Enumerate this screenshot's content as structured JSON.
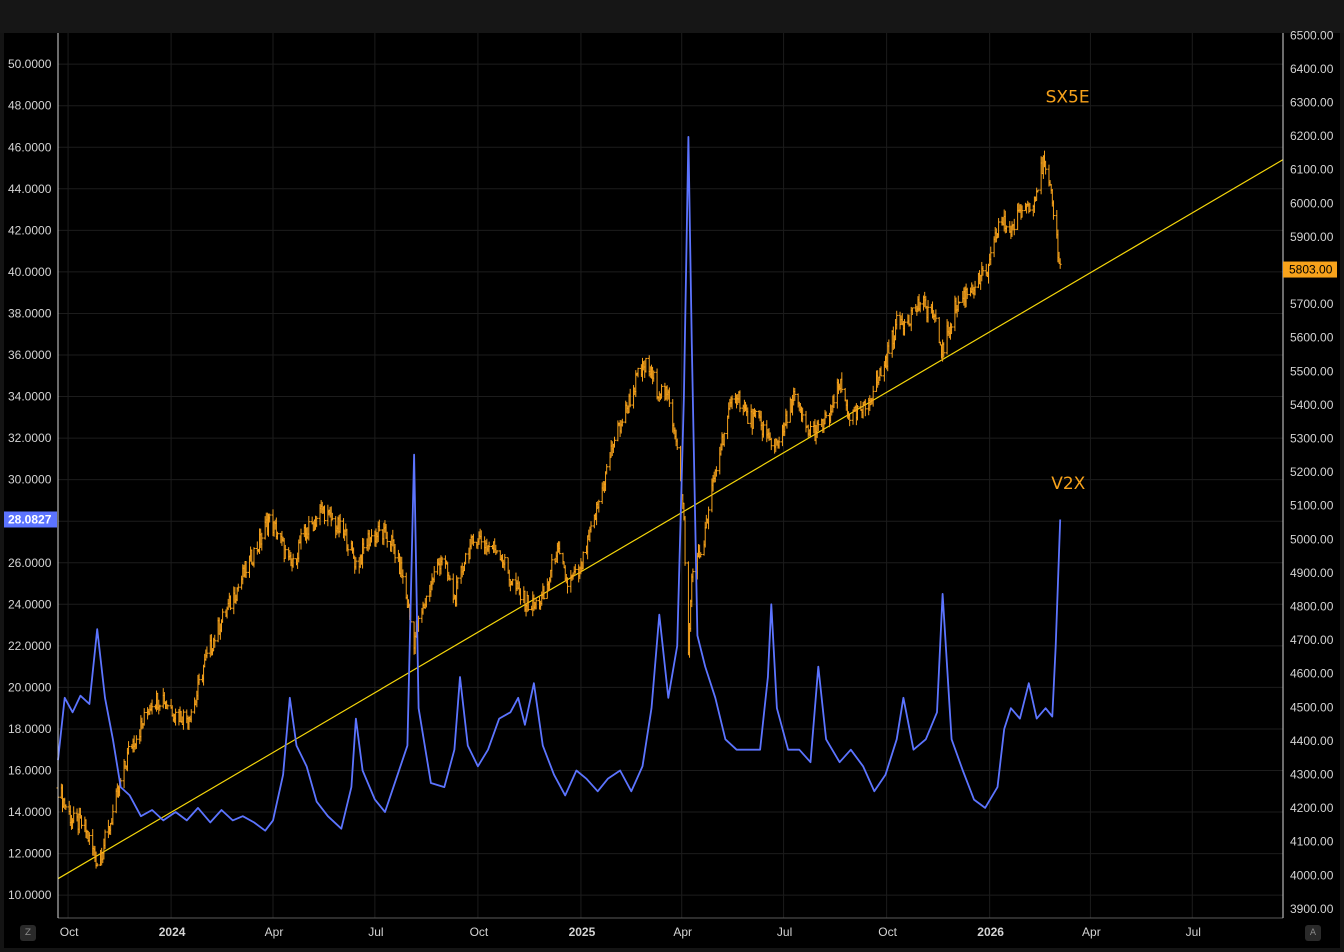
{
  "chart_data": {
    "type": "line",
    "left_axis": {
      "ticks": [
        "10.0000",
        "12.0000",
        "14.0000",
        "16.0000",
        "18.0000",
        "20.0000",
        "22.0000",
        "24.0000",
        "26.0000",
        "28.0000",
        "30.0000",
        "32.0000",
        "34.0000",
        "36.0000",
        "38.0000",
        "40.0000",
        "42.0000",
        "44.0000",
        "46.0000",
        "48.0000",
        "50.0000"
      ],
      "range": [
        8.9,
        51.5
      ],
      "last_value_label": "28.0827"
    },
    "right_axis": {
      "ticks": [
        "3900.00",
        "4000.00",
        "4100.00",
        "4200.00",
        "4300.00",
        "4400.00",
        "4500.00",
        "4600.00",
        "4700.00",
        "4800.00",
        "4900.00",
        "5000.00",
        "5100.00",
        "5200.00",
        "5300.00",
        "5400.00",
        "5500.00",
        "5600.00",
        "5700.00",
        "5800.00",
        "5900.00",
        "6000.00",
        "6100.00",
        "6200.00",
        "6300.00",
        "6400.00",
        "6500.00"
      ],
      "range": [
        3873,
        6507
      ],
      "last_value_label": "5803.00"
    },
    "x_axis": {
      "ticks": [
        {
          "label": "Oct",
          "date": "2023-10-01"
        },
        {
          "label": "2024",
          "date": "2024-01-01"
        },
        {
          "label": "Apr",
          "date": "2024-04-01"
        },
        {
          "label": "Jul",
          "date": "2024-07-01"
        },
        {
          "label": "Oct",
          "date": "2024-10-01"
        },
        {
          "label": "2025",
          "date": "2025-01-01"
        },
        {
          "label": "Apr",
          "date": "2025-04-01"
        },
        {
          "label": "Jul",
          "date": "2025-07-01"
        },
        {
          "label": "Oct",
          "date": "2025-10-01"
        },
        {
          "label": "2026",
          "date": "2026-01-01"
        },
        {
          "label": "Apr",
          "date": "2026-04-01"
        },
        {
          "label": "Jul",
          "date": "2026-07-01"
        }
      ],
      "range": [
        "2023-09-22",
        "2026-09-20"
      ]
    },
    "grid": true,
    "series": [
      {
        "name": "SX5E",
        "axis": "right",
        "style": "bars",
        "color": "#f7a21b",
        "points": [
          [
            "2023-09-22",
            4260
          ],
          [
            "2023-10-05",
            4160
          ],
          [
            "2023-10-15",
            4150
          ],
          [
            "2023-10-27",
            4040
          ],
          [
            "2023-11-05",
            4120
          ],
          [
            "2023-11-15",
            4250
          ],
          [
            "2023-11-25",
            4380
          ],
          [
            "2023-12-05",
            4440
          ],
          [
            "2023-12-15",
            4520
          ],
          [
            "2023-12-25",
            4530
          ],
          [
            "2024-01-05",
            4480
          ],
          [
            "2024-01-15",
            4470
          ],
          [
            "2024-01-22",
            4510
          ],
          [
            "2024-01-30",
            4620
          ],
          [
            "2024-02-10",
            4720
          ],
          [
            "2024-02-20",
            4790
          ],
          [
            "2024-03-01",
            4860
          ],
          [
            "2024-03-10",
            4930
          ],
          [
            "2024-03-20",
            4990
          ],
          [
            "2024-03-28",
            5060
          ],
          [
            "2024-04-05",
            5020
          ],
          [
            "2024-04-15",
            4930
          ],
          [
            "2024-04-19",
            4920
          ],
          [
            "2024-04-25",
            4990
          ],
          [
            "2024-05-05",
            5040
          ],
          [
            "2024-05-15",
            5090
          ],
          [
            "2024-05-25",
            5050
          ],
          [
            "2024-06-05",
            5010
          ],
          [
            "2024-06-15",
            4920
          ],
          [
            "2024-06-25",
            5000
          ],
          [
            "2024-07-05",
            5020
          ],
          [
            "2024-07-15",
            5000
          ],
          [
            "2024-07-25",
            4900
          ],
          [
            "2024-08-05",
            4700
          ],
          [
            "2024-08-12",
            4780
          ],
          [
            "2024-08-20",
            4870
          ],
          [
            "2024-08-30",
            4950
          ],
          [
            "2024-09-10",
            4820
          ],
          [
            "2024-09-20",
            4950
          ],
          [
            "2024-09-30",
            5010
          ],
          [
            "2024-10-10",
            4980
          ],
          [
            "2024-10-20",
            4970
          ],
          [
            "2024-10-30",
            4880
          ],
          [
            "2024-11-10",
            4820
          ],
          [
            "2024-11-20",
            4800
          ],
          [
            "2024-11-30",
            4830
          ],
          [
            "2024-12-10",
            4970
          ],
          [
            "2024-12-20",
            4870
          ],
          [
            "2024-12-31",
            4900
          ],
          [
            "2025-01-10",
            5020
          ],
          [
            "2025-01-20",
            5150
          ],
          [
            "2025-01-30",
            5290
          ],
          [
            "2025-02-10",
            5380
          ],
          [
            "2025-02-20",
            5480
          ],
          [
            "2025-03-01",
            5520
          ],
          [
            "2025-03-10",
            5450
          ],
          [
            "2025-03-20",
            5420
          ],
          [
            "2025-03-28",
            5290
          ],
          [
            "2025-04-03",
            5050
          ],
          [
            "2025-04-07",
            4650
          ],
          [
            "2025-04-10",
            4890
          ],
          [
            "2025-04-20",
            4980
          ],
          [
            "2025-04-30",
            5180
          ],
          [
            "2025-05-10",
            5340
          ],
          [
            "2025-05-20",
            5440
          ],
          [
            "2025-05-30",
            5360
          ],
          [
            "2025-06-10",
            5350
          ],
          [
            "2025-06-20",
            5280
          ],
          [
            "2025-06-30",
            5310
          ],
          [
            "2025-07-10",
            5430
          ],
          [
            "2025-07-20",
            5330
          ],
          [
            "2025-07-30",
            5320
          ],
          [
            "2025-08-10",
            5360
          ],
          [
            "2025-08-20",
            5460
          ],
          [
            "2025-08-30",
            5360
          ],
          [
            "2025-09-10",
            5380
          ],
          [
            "2025-09-20",
            5450
          ],
          [
            "2025-09-30",
            5530
          ],
          [
            "2025-10-10",
            5640
          ],
          [
            "2025-10-20",
            5660
          ],
          [
            "2025-10-30",
            5700
          ],
          [
            "2025-11-10",
            5680
          ],
          [
            "2025-11-20",
            5560
          ],
          [
            "2025-11-30",
            5680
          ],
          [
            "2025-12-10",
            5730
          ],
          [
            "2025-12-20",
            5760
          ],
          [
            "2025-12-31",
            5800
          ],
          [
            "2026-01-10",
            5950
          ],
          [
            "2026-01-20",
            5920
          ],
          [
            "2026-01-30",
            5980
          ],
          [
            "2026-02-10",
            6020
          ],
          [
            "2026-02-18",
            6120
          ],
          [
            "2026-02-22",
            6060
          ],
          [
            "2026-02-27",
            5980
          ],
          [
            "2026-03-05",
            5803
          ]
        ]
      },
      {
        "name": "V2X",
        "axis": "left",
        "style": "line",
        "color": "#5c74ff",
        "points": [
          [
            "2023-09-22",
            16.5
          ],
          [
            "2023-09-28",
            19.5
          ],
          [
            "2023-10-05",
            18.8
          ],
          [
            "2023-10-12",
            19.6
          ],
          [
            "2023-10-20",
            19.2
          ],
          [
            "2023-10-27",
            22.8
          ],
          [
            "2023-11-03",
            19.5
          ],
          [
            "2023-11-10",
            17.5
          ],
          [
            "2023-11-17",
            15.2
          ],
          [
            "2023-11-25",
            14.8
          ],
          [
            "2023-12-05",
            13.8
          ],
          [
            "2023-12-15",
            14.1
          ],
          [
            "2023-12-25",
            13.6
          ],
          [
            "2024-01-05",
            14.0
          ],
          [
            "2024-01-15",
            13.6
          ],
          [
            "2024-01-25",
            14.2
          ],
          [
            "2024-02-05",
            13.5
          ],
          [
            "2024-02-15",
            14.1
          ],
          [
            "2024-02-25",
            13.6
          ],
          [
            "2024-03-05",
            13.8
          ],
          [
            "2024-03-15",
            13.5
          ],
          [
            "2024-03-25",
            13.1
          ],
          [
            "2024-04-01",
            13.6
          ],
          [
            "2024-04-10",
            15.8
          ],
          [
            "2024-04-16",
            19.5
          ],
          [
            "2024-04-22",
            17.2
          ],
          [
            "2024-05-01",
            16.2
          ],
          [
            "2024-05-10",
            14.5
          ],
          [
            "2024-05-20",
            13.8
          ],
          [
            "2024-06-01",
            13.2
          ],
          [
            "2024-06-10",
            15.2
          ],
          [
            "2024-06-14",
            18.5
          ],
          [
            "2024-06-20",
            16.0
          ],
          [
            "2024-07-01",
            14.6
          ],
          [
            "2024-07-10",
            14.0
          ],
          [
            "2024-07-20",
            15.6
          ],
          [
            "2024-07-30",
            17.2
          ],
          [
            "2024-08-05",
            31.2
          ],
          [
            "2024-08-09",
            19.0
          ],
          [
            "2024-08-20",
            15.4
          ],
          [
            "2024-09-01",
            15.2
          ],
          [
            "2024-09-10",
            17.0
          ],
          [
            "2024-09-15",
            20.5
          ],
          [
            "2024-09-22",
            17.2
          ],
          [
            "2024-10-01",
            16.2
          ],
          [
            "2024-10-10",
            17.0
          ],
          [
            "2024-10-20",
            18.5
          ],
          [
            "2024-10-30",
            18.8
          ],
          [
            "2024-11-06",
            19.5
          ],
          [
            "2024-11-12",
            18.2
          ],
          [
            "2024-11-20",
            20.2
          ],
          [
            "2024-11-28",
            17.2
          ],
          [
            "2024-12-08",
            15.8
          ],
          [
            "2024-12-18",
            14.8
          ],
          [
            "2024-12-28",
            16.0
          ],
          [
            "2025-01-06",
            15.6
          ],
          [
            "2025-01-16",
            15.0
          ],
          [
            "2025-01-25",
            15.6
          ],
          [
            "2025-02-05",
            16.0
          ],
          [
            "2025-02-15",
            15.0
          ],
          [
            "2025-02-25",
            16.2
          ],
          [
            "2025-03-05",
            19.0
          ],
          [
            "2025-03-12",
            23.5
          ],
          [
            "2025-03-20",
            19.5
          ],
          [
            "2025-03-28",
            22.0
          ],
          [
            "2025-04-03",
            34.0
          ],
          [
            "2025-04-07",
            46.5
          ],
          [
            "2025-04-10",
            36.5
          ],
          [
            "2025-04-15",
            22.5
          ],
          [
            "2025-04-22",
            21.0
          ],
          [
            "2025-05-01",
            19.5
          ],
          [
            "2025-05-10",
            17.5
          ],
          [
            "2025-05-20",
            17.0
          ],
          [
            "2025-05-30",
            17.0
          ],
          [
            "2025-06-10",
            17.0
          ],
          [
            "2025-06-17",
            20.5
          ],
          [
            "2025-06-20",
            24.0
          ],
          [
            "2025-06-25",
            19.0
          ],
          [
            "2025-07-05",
            17.0
          ],
          [
            "2025-07-15",
            17.0
          ],
          [
            "2025-07-25",
            16.4
          ],
          [
            "2025-08-01",
            21.0
          ],
          [
            "2025-08-08",
            17.5
          ],
          [
            "2025-08-20",
            16.4
          ],
          [
            "2025-08-30",
            17.0
          ],
          [
            "2025-09-10",
            16.2
          ],
          [
            "2025-09-20",
            15.0
          ],
          [
            "2025-09-30",
            15.8
          ],
          [
            "2025-10-10",
            17.5
          ],
          [
            "2025-10-16",
            19.5
          ],
          [
            "2025-10-25",
            17.0
          ],
          [
            "2025-11-05",
            17.5
          ],
          [
            "2025-11-15",
            18.8
          ],
          [
            "2025-11-20",
            24.5
          ],
          [
            "2025-11-28",
            17.5
          ],
          [
            "2025-12-08",
            16.0
          ],
          [
            "2025-12-18",
            14.6
          ],
          [
            "2025-12-28",
            14.2
          ],
          [
            "2026-01-08",
            15.2
          ],
          [
            "2026-01-14",
            18.0
          ],
          [
            "2026-01-20",
            19.0
          ],
          [
            "2026-01-28",
            18.5
          ],
          [
            "2026-02-05",
            20.2
          ],
          [
            "2026-02-12",
            18.5
          ],
          [
            "2026-02-20",
            19.0
          ],
          [
            "2026-02-26",
            18.6
          ],
          [
            "2026-03-01",
            22.0
          ],
          [
            "2026-03-05",
            28.08
          ]
        ]
      }
    ],
    "annotations": [
      {
        "type": "label",
        "text": "SX5E",
        "color": "#f7a21b",
        "date": "2026-02-20",
        "value": 6300,
        "axis": "right"
      },
      {
        "type": "label",
        "text": "V2X",
        "color": "#f7a21b",
        "date": "2026-02-25",
        "value": 5150,
        "axis": "right"
      },
      {
        "type": "trendline",
        "color": "#f5d60a",
        "axis": "right",
        "from": {
          "date": "2023-09-22",
          "value": 3990
        },
        "to": {
          "date": "2026-09-20",
          "value": 6130
        }
      }
    ]
  },
  "buttons": {
    "left": "Z",
    "right": "A"
  }
}
